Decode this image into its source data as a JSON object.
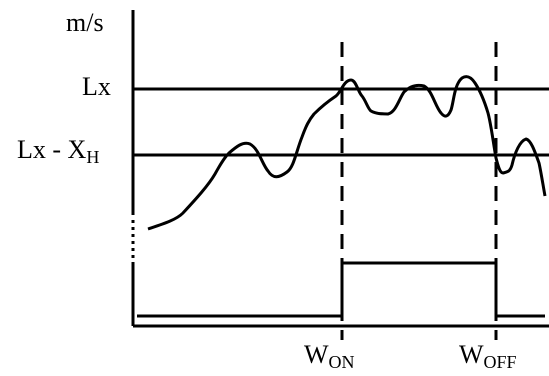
{
  "labels": {
    "y_unit": "m/s",
    "level_lx": "Lx",
    "level_lxh": "Lx - X",
    "level_lxh_sub": "H",
    "w_on": "W",
    "w_on_sub": "ON",
    "w_off": "W",
    "w_off_sub": "OFF"
  },
  "colors": {
    "ink": "#000000",
    "background": "#ffffff"
  }
}
